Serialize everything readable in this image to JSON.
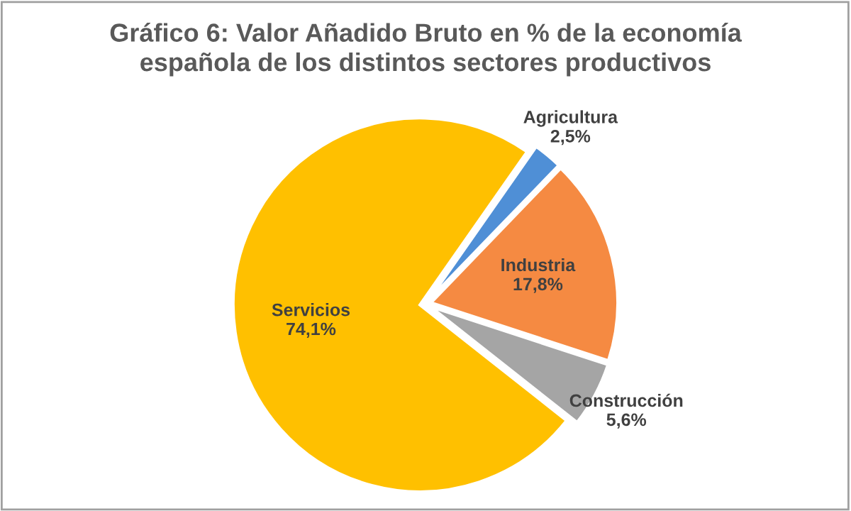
{
  "chart_data": {
    "type": "pie",
    "title": "Gráfico 6: Valor Añadido Bruto en % de la economía\nespañola de los distintos sectores productivos",
    "categories": [
      "Agricultura",
      "Industria",
      "Construcción",
      "Servicios"
    ],
    "values": [
      2.5,
      17.8,
      5.6,
      74.1
    ],
    "value_labels": [
      "2,5%",
      "17,8%",
      "5,6%",
      "74,1%"
    ],
    "colors": [
      "#4f8fd6",
      "#f58a42",
      "#a5a5a5",
      "#ffc000"
    ],
    "legend": false
  }
}
